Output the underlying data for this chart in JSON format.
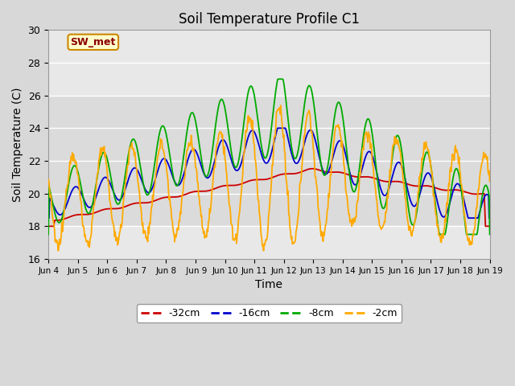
{
  "title": "Soil Temperature Profile C1",
  "xlabel": "Time",
  "ylabel": "Soil Temperature (C)",
  "ylim": [
    16,
    30
  ],
  "xlim": [
    0,
    360
  ],
  "annotation": "SW_met",
  "legend_labels": [
    "-32cm",
    "-16cm",
    "-8cm",
    "-2cm"
  ],
  "legend_colors": [
    "#cc0000",
    "#0000cc",
    "#00aa00",
    "#ffaa00"
  ],
  "xtick_labels": [
    "Jun 4",
    "Jun 5",
    "Jun 6",
    "Jun 7",
    "Jun 8",
    " Jun 9",
    "Jun 10",
    "Jun 11",
    "Jun 12",
    "Jun 13",
    "Jun 14",
    "Jun 15",
    "Jun 16",
    "Jun 17",
    "Jun 18",
    "Jun 19"
  ],
  "xtick_positions": [
    0,
    24,
    48,
    72,
    96,
    120,
    144,
    168,
    192,
    216,
    240,
    264,
    288,
    312,
    336,
    360
  ],
  "ytick_values": [
    16,
    18,
    20,
    22,
    24,
    26,
    28,
    30
  ],
  "figsize": [
    6.4,
    4.8
  ],
  "dpi": 100
}
